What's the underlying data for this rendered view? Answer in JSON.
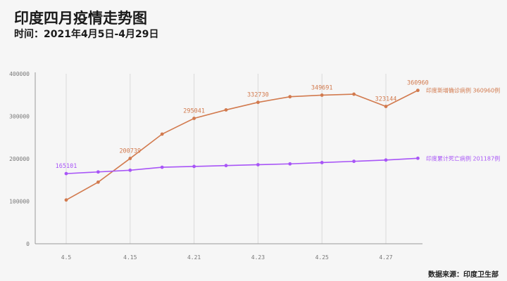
{
  "header": {
    "title": "印度四月疫情走势图",
    "subtitle": "时间：2021年4月5日-4月29日"
  },
  "footer": {
    "source": "数据来源：印度卫生部"
  },
  "colors": {
    "cases": "#d27a4e",
    "deaths": "#a855f7",
    "grid": "#d9d9d9"
  },
  "chart_data": {
    "type": "line",
    "title": "印度四月疫情走势图",
    "subtitle": "时间：2021年4月5日-4月29日",
    "xlabel": "",
    "ylabel": "",
    "x_tick_labels": [
      "4.5",
      "4.15",
      "4.21",
      "4.23",
      "4.25",
      "4.27"
    ],
    "x_tick_index": [
      0,
      2,
      4,
      6,
      8,
      10
    ],
    "ylim": [
      0,
      400000
    ],
    "y_ticks": [
      0,
      100000,
      200000,
      300000,
      400000
    ],
    "grid": "vertical",
    "legend": "right-end labels",
    "series": [
      {
        "name": "印度新增确诊病例 360960例",
        "color": "#d27a4e",
        "values": [
          103000,
          145000,
          200739,
          258000,
          295041,
          315000,
          332730,
          346000,
          349691,
          352000,
          323144,
          360960
        ],
        "labels": [
          null,
          null,
          "200739",
          null,
          "295041",
          null,
          "332730",
          null,
          "349691",
          null,
          "323144",
          "360960"
        ]
      },
      {
        "name": "印度累计死亡病例 201187例",
        "color": "#a855f7",
        "values": [
          165101,
          169000,
          173000,
          180000,
          182000,
          184000,
          186000,
          188000,
          191000,
          194000,
          197000,
          201187
        ],
        "labels": [
          "165101",
          null,
          null,
          null,
          null,
          null,
          null,
          null,
          null,
          null,
          null,
          null
        ]
      }
    ]
  }
}
